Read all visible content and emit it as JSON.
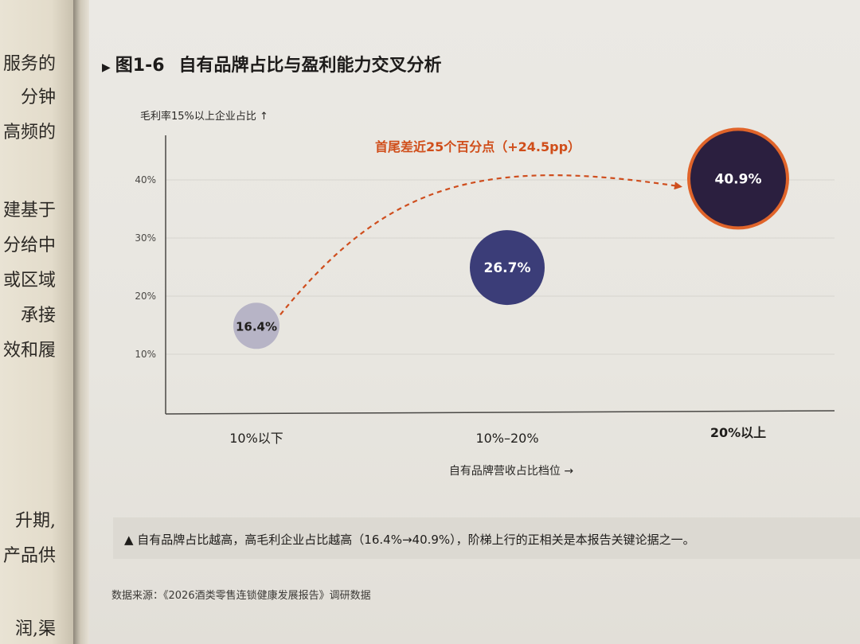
{
  "left_page": {
    "fragments": [
      "服务的",
      "分钟",
      "高频的",
      "建基于",
      "分给中",
      "或区域",
      "承接",
      "效和履",
      "升期,",
      "产品供",
      "润,渠"
    ]
  },
  "figure": {
    "number": "图1-6",
    "title": "自有品牌占比与盈利能力交叉分析",
    "caption": "▲ 自有品牌占比越高，高毛利企业占比越高（16.4%→40.9%），阶梯上行的正相关是本报告关键论据之一。",
    "source": "数据来源：《2026酒类零售连锁健康发展报告》调研数据"
  },
  "chart_data": {
    "type": "scatter",
    "title": "自有品牌占比与盈利能力交叉分析",
    "ylabel": "毛利率15%以上企业占比 ↑",
    "xlabel": "自有品牌营收占比档位 →",
    "categories": [
      "10%以下",
      "10%–20%",
      "20%以上"
    ],
    "values": [
      16.4,
      26.7,
      40.9
    ],
    "value_labels": [
      "16.4%",
      "26.7%",
      "40.9%"
    ],
    "yticks": [
      "10%",
      "20%",
      "30%",
      "40%"
    ],
    "ytick_values": [
      10,
      20,
      30,
      40
    ],
    "ylim": [
      0,
      46
    ],
    "annotation": "首尾差近25个百分点（+24.5pp）",
    "colors": {
      "point_low": "#b7b4c6",
      "point_mid": "#3b3d78",
      "point_high": "#2b1f3f",
      "highlight_ring": "#e0642a",
      "arrow": "#cf4e1e",
      "annotation": "#d04e1a"
    },
    "grid": true,
    "legend": "none"
  }
}
